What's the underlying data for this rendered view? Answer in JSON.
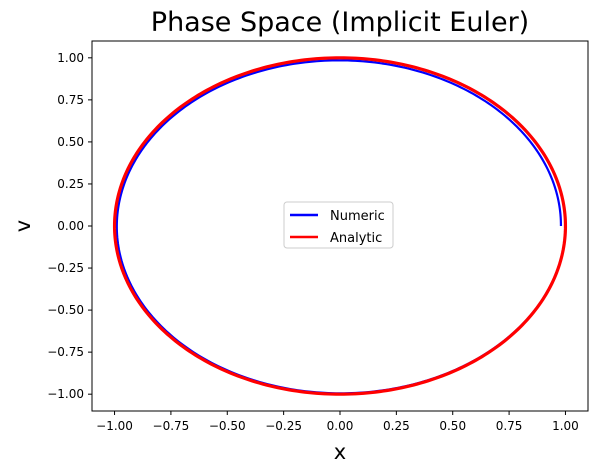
{
  "chart_data": {
    "type": "line",
    "title": "Phase Space  (Implicit Euler)",
    "xlabel": "x",
    "ylabel": "v",
    "xlim": [
      -1.1,
      1.1
    ],
    "ylim": [
      -1.1,
      1.1
    ],
    "xticks": [
      -1.0,
      -0.75,
      -0.5,
      -0.25,
      0.0,
      0.25,
      0.5,
      0.75,
      1.0
    ],
    "xtick_labels": [
      "−1.00",
      "−0.75",
      "−0.50",
      "−0.25",
      "0.00",
      "0.25",
      "0.50",
      "0.75",
      "1.00"
    ],
    "yticks": [
      1.0,
      0.75,
      0.5,
      0.25,
      0.0,
      -0.25,
      -0.5,
      -0.75,
      -1.0
    ],
    "ytick_labels": [
      "1.00",
      "0.75",
      "0.50",
      "0.25",
      "0.00",
      "−0.25",
      "−0.50",
      "−0.75",
      "−1.00"
    ],
    "grid": false,
    "legend_position": "center",
    "series": [
      {
        "name": "Numeric",
        "color": "#0000ff",
        "shape": "closed curve x = r cos t, v = -r sin t, spiralling from r = 1.00 down to r = 0.98",
        "radius_start": 1.0,
        "radius_end": 0.98
      },
      {
        "name": "Analytic",
        "color": "#ff0000",
        "shape": "circle x = cos t, v = -sin t",
        "radius": 1.0
      }
    ]
  }
}
